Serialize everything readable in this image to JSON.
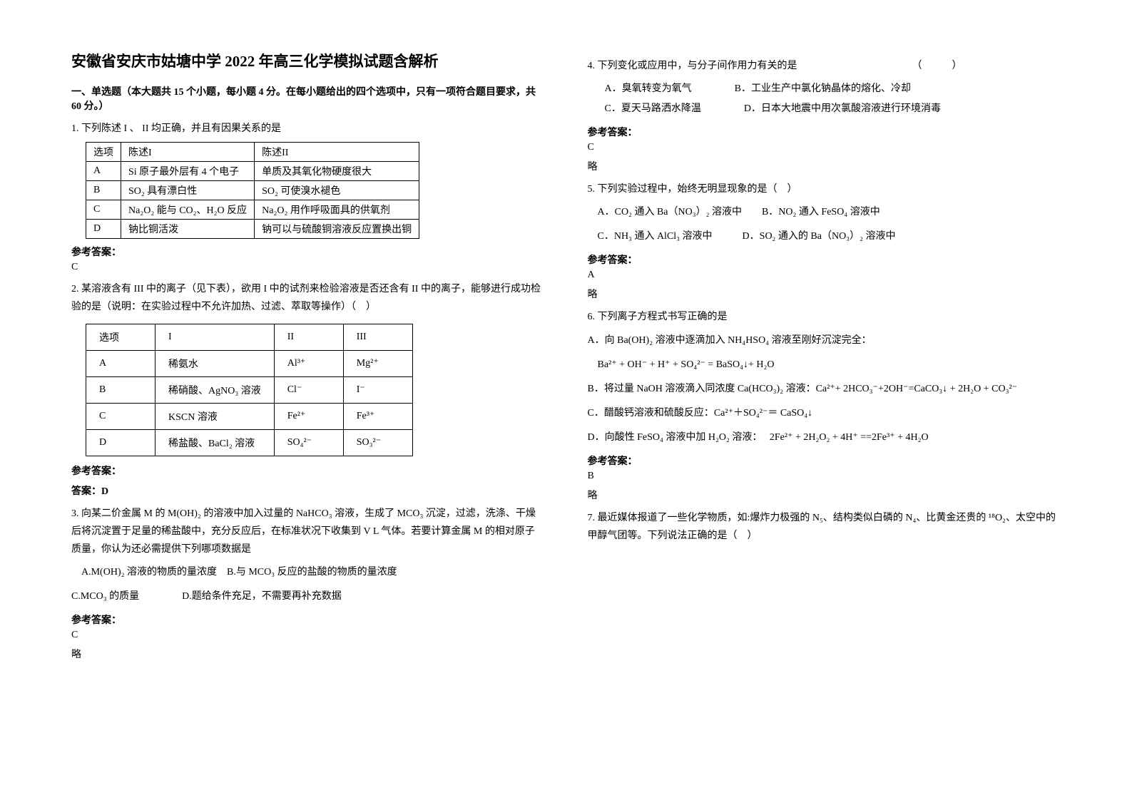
{
  "title": "安徽省安庆市姑塘中学 2022 年高三化学模拟试题含解析",
  "section1": "一、单选题（本大题共 15 个小题，每小题 4 分。在每小题给出的四个选项中，只有一项符合题目要求，共 60 分。）",
  "q1_stem": "1. 下列陈述 I 、 II 均正确，并且有因果关系的是",
  "q1_table": {
    "header": [
      "选项",
      "陈述I",
      "陈述II"
    ],
    "rows": [
      [
        "A",
        "Si 原子最外层有 4 个电子",
        "单质及其氧化物硬度很大"
      ],
      [
        "B",
        "SO₂ 具有漂白性",
        "SO₂ 可使溴水褪色"
      ],
      [
        "C",
        "Na₂O₂ 能与 CO₂、H₂O 反应",
        "Na₂O₂ 用作呼吸面具的供氧剂"
      ],
      [
        "D",
        "钠比铜活泼",
        "钠可以与硫酸铜溶液反应置换出铜"
      ]
    ]
  },
  "ref_label": "参考答案：",
  "q1_ans": "C",
  "q2_stem": "2. 某溶液含有 III 中的离子（见下表），欲用 I 中的试剂来检验溶液是否还含有 II 中的离子，能够进行成功检验的是（说明：在实验过程中不允许加热、过滤、萃取等操作）（　）",
  "q2_table": {
    "header": [
      "选项",
      "I",
      "II",
      "III"
    ],
    "rows": [
      [
        "A",
        "稀氨水",
        "Al³⁺",
        "Mg²⁺"
      ],
      [
        "B",
        "稀硝酸、AgNO₃ 溶液",
        "Cl⁻",
        "I⁻"
      ],
      [
        "C",
        "KSCN 溶液",
        "Fe²⁺",
        "Fe³⁺"
      ],
      [
        "D",
        "稀盐酸、BaCl₂ 溶液",
        "SO₄²⁻",
        "SO₃²⁻"
      ]
    ]
  },
  "q2_ans_label": "答案：D",
  "q3_stem": "3. 向某二价金属 M 的 M(OH)₂ 的溶液中加入过量的 NaHCO₃ 溶液，生成了 MCO₃ 沉淀，过滤，洗涤、干燥后将沉淀置于足量的稀盐酸中，充分反应后，在标准状况下收集到 V L 气体。若要计算金属 M 的相对原子质量，你认为还必需提供下列哪项数据是",
  "q3_opts_line1": "　A.M(OH)₂ 溶液的物质的量浓度　B.与 MCO₃ 反应的盐酸的物质的量浓度",
  "q3_opts_line2_a": "C.MCO₃ 的质量",
  "q3_opts_line2_b": "D.题给条件充足，不需要再补充数据",
  "q3_ans": "C",
  "q3_note": "略",
  "q4_stem": "4. 下列变化或应用中，与分子间作用力有关的是　　　　　　　　　　　　（　　　）",
  "q4_opt_a": "A．臭氧转变为氧气",
  "q4_opt_b": "B．工业生产中氯化钠晶体的熔化、冷却",
  "q4_opt_c": "C．夏天马路洒水降温",
  "q4_opt_d": "D．日本大地震中用次氯酸溶液进行环境消毒",
  "q4_ans": "C",
  "q4_note": "略",
  "q5_stem": "5. 下列实验过程中，始终无明显现象的是（　）",
  "q5_line1": "　A．CO₂ 通入 Ba（NO₃）₂ 溶液中　　B．NO₂ 通入 FeSO₄ 溶液中",
  "q5_line2": "　C．NH₃ 通入 AlCl₃ 溶液中　　　D．SO₂ 通入的 Ba（NO₃）₂ 溶液中",
  "q5_ans": "A",
  "q5_note": "略",
  "q6_stem": "6. 下列离子方程式书写正确的是",
  "q6_a": "A．向 Ba(OH)₂ 溶液中逐滴加入 NH₄HSO₄ 溶液至刚好沉淀完全：",
  "q6_a_eq": "　Ba²⁺ + OH⁻ + H⁺ + SO₄²⁻ = BaSO₄↓+ H₂O",
  "q6_b": "B．将过量 NaOH 溶液滴入同浓度 Ca(HCO₃)₂ 溶液：Ca²⁺+ 2HCO₃⁻+2OH⁻=CaCO₃↓ + 2H₂O + CO₃²⁻",
  "q6_c": "C．醋酸钙溶液和硫酸反应：Ca²⁺＋SO₄²⁻＝ CaSO₄↓",
  "q6_d": "D．向酸性 FeSO₄ 溶液中加 H₂O₂ 溶液：　 2Fe²⁺ + 2H₂O₂ + 4H⁺ ==2Fe³⁺ + 4H₂O",
  "q6_ans": "B",
  "q6_note": "略",
  "q7_stem": "7. 最近媒体报道了一些化学物质，如:爆炸力极强的 N₅、结构类似白磷的 N₄、比黄金还贵的 ¹⁸O₂、太空中的甲醇气团等。下列说法正确的是（　）"
}
